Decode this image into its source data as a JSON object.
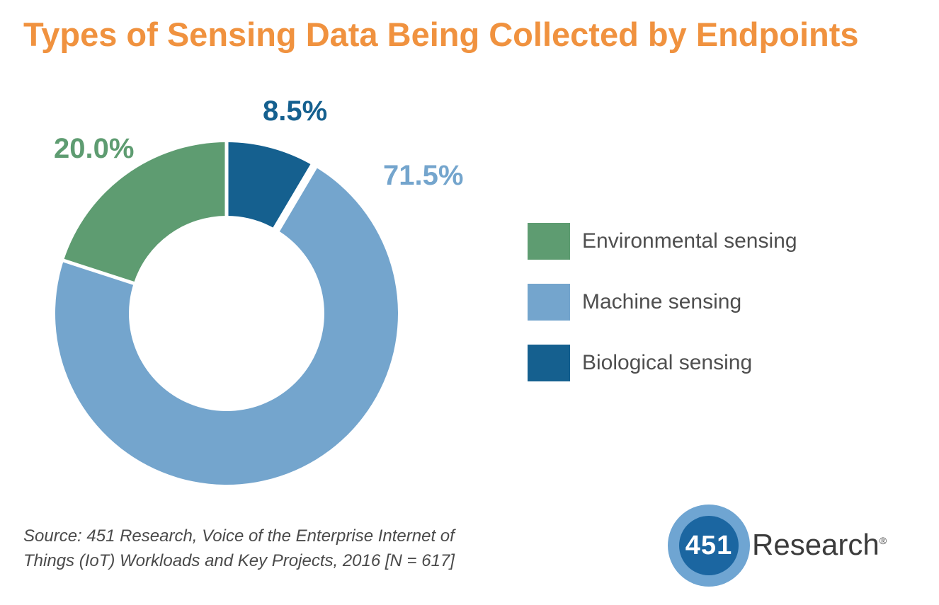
{
  "title": {
    "text": "Types of Sensing Data Being Collected by Endpoints",
    "color": "#f0923f"
  },
  "chart_data": {
    "type": "pie",
    "subtype": "donut",
    "title": "Types of Sensing Data Being Collected by Endpoints",
    "segments": [
      {
        "label": "Environmental sensing",
        "value": 20.0,
        "display": "20.0%",
        "color": "#5e9c71"
      },
      {
        "label": "Machine sensing",
        "value": 71.5,
        "display": "71.5%",
        "color": "#74a5cd"
      },
      {
        "label": "Biological sensing",
        "value": 8.5,
        "display": "8.5%",
        "color": "#15608f"
      }
    ],
    "clockwise_order_from_top": [
      "Biological sensing",
      "Machine sensing",
      "Environmental sensing"
    ],
    "legend_position": "right",
    "labels_shown_as": "percent",
    "total": 100.0
  },
  "source_note": {
    "line1": "Source: 451 Research, Voice of the Enterprise Internet of",
    "line2": "Things (IoT) Workloads and Key Projects, 2016 [N = 617]"
  },
  "logo": {
    "badge_number": "451",
    "name": "Research",
    "registered_mark": "®",
    "outer_color": "#6fa5d2",
    "inner_color": "#1b66a1"
  }
}
